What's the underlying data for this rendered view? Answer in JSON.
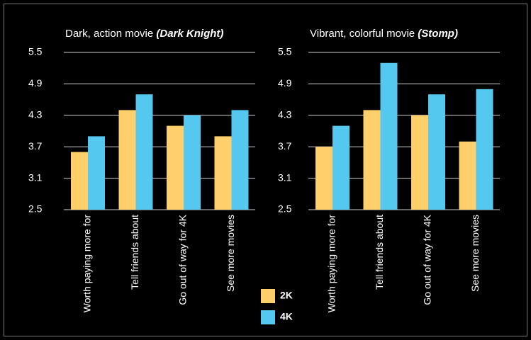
{
  "chart_data": [
    {
      "type": "bar",
      "title": "Dark, action movie",
      "subtitle": "(Dark Knight)",
      "categories": [
        "Worth paying more for",
        "Tell friends about",
        "Go out of way for 4K",
        "See more movies"
      ],
      "series": [
        {
          "name": "2K",
          "color": "#fecf6a",
          "values": [
            3.6,
            4.4,
            4.1,
            3.9
          ]
        },
        {
          "name": "4K",
          "color": "#55c8f0",
          "values": [
            3.9,
            4.7,
            4.3,
            4.4
          ]
        }
      ],
      "ylim": [
        2.5,
        5.5
      ],
      "yticks": [
        2.5,
        3.1,
        3.7,
        4.3,
        4.9,
        5.5
      ],
      "grid": true,
      "legend": "bottom"
    },
    {
      "type": "bar",
      "title": "Vibrant, colorful movie",
      "subtitle": "(Stomp)",
      "categories": [
        "Worth paying more for",
        "Tell friends about",
        "Go out of way for 4K",
        "See more movies"
      ],
      "series": [
        {
          "name": "2K",
          "color": "#fecf6a",
          "values": [
            3.7,
            4.4,
            4.3,
            3.8
          ]
        },
        {
          "name": "4K",
          "color": "#55c8f0",
          "values": [
            4.1,
            5.3,
            4.7,
            4.8
          ]
        }
      ],
      "ylim": [
        2.5,
        5.5
      ],
      "yticks": [
        2.5,
        3.1,
        3.7,
        4.3,
        4.9,
        5.5
      ],
      "grid": true
    }
  ]
}
